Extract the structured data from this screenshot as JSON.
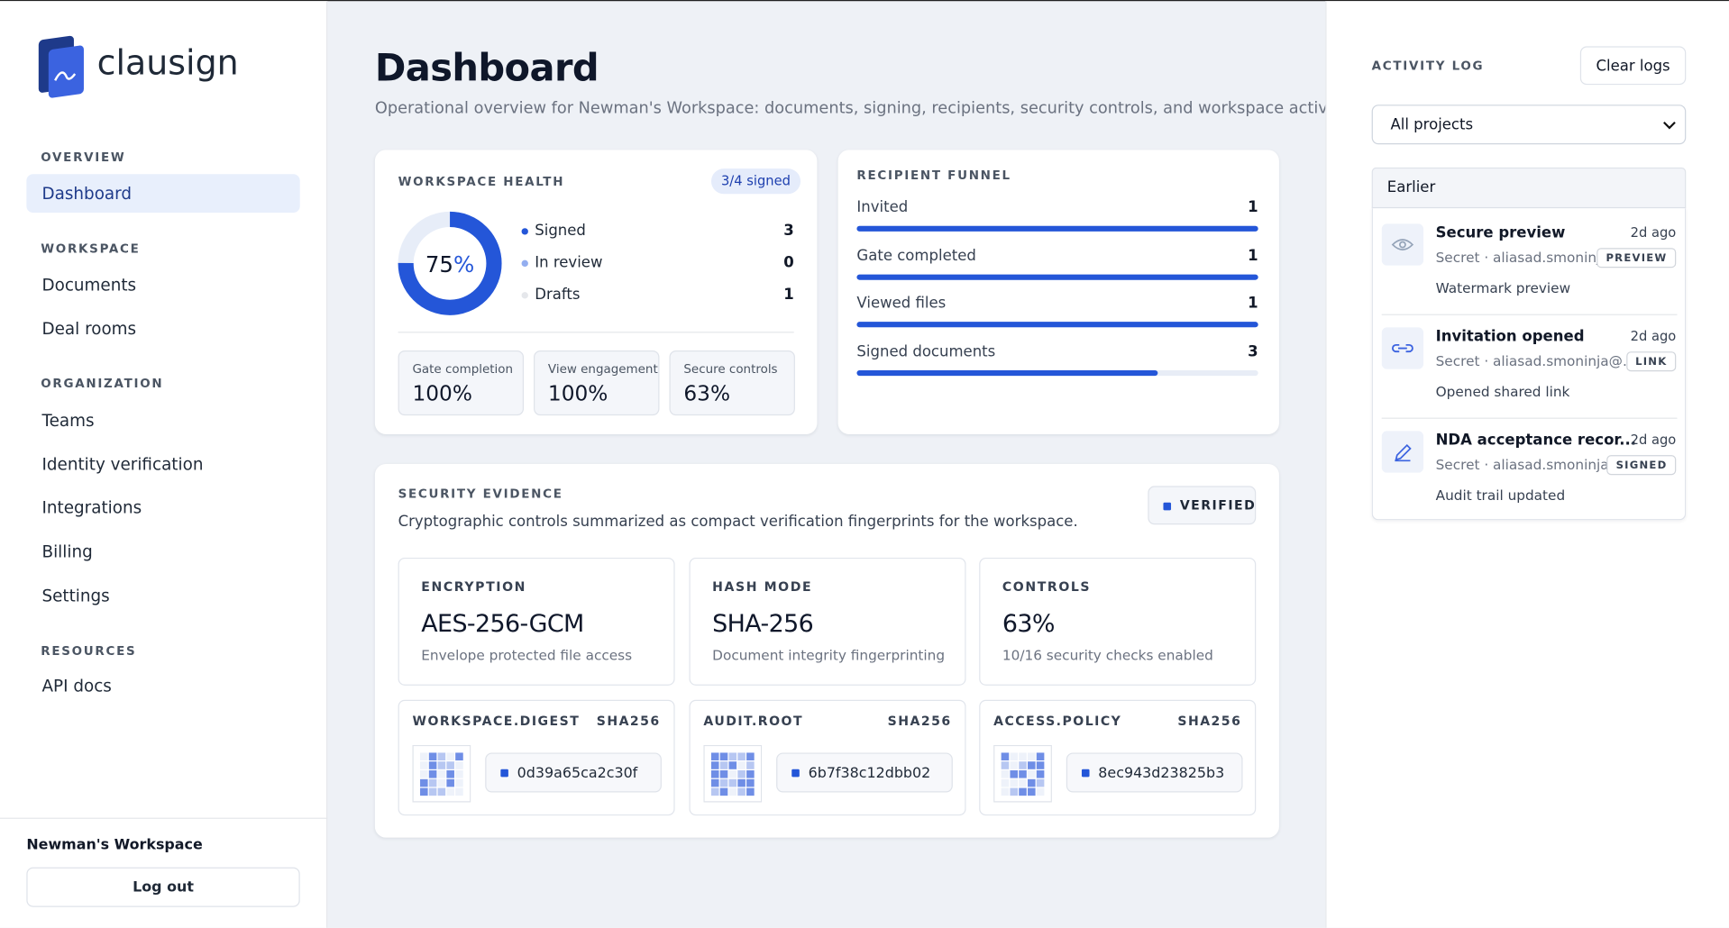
{
  "brand": "clausign",
  "nav": {
    "sections": [
      {
        "title": "OVERVIEW",
        "items": [
          "Dashboard"
        ]
      },
      {
        "title": "WORKSPACE",
        "items": [
          "Documents",
          "Deal rooms"
        ]
      },
      {
        "title": "ORGANIZATION",
        "items": [
          "Teams",
          "Identity verification",
          "Integrations",
          "Billing",
          "Settings"
        ]
      },
      {
        "title": "RESOURCES",
        "items": [
          "API docs"
        ]
      }
    ]
  },
  "footer": {
    "workspace": "Newman's Workspace",
    "logout": "Log out"
  },
  "header": {
    "title": "Dashboard",
    "subtitle": "Operational overview for Newman's Workspace: documents, signing, recipients, security controls, and workspace activity."
  },
  "health": {
    "title": "WORKSPACE HEALTH",
    "badge": "3/4 signed",
    "donut": {
      "value": 75,
      "unit": "%"
    },
    "legend": [
      {
        "label": "Signed",
        "value": 3
      },
      {
        "label": "In review",
        "value": 0
      },
      {
        "label": "Drafts",
        "value": 1
      }
    ],
    "stats": [
      {
        "label": "Gate completion",
        "value": "100%"
      },
      {
        "label": "View engagement",
        "value": "100%"
      },
      {
        "label": "Secure controls",
        "value": "63%"
      }
    ]
  },
  "funnel": {
    "title": "RECIPIENT FUNNEL",
    "rows": [
      {
        "label": "Invited",
        "value": 1
      },
      {
        "label": "Gate completed",
        "value": 1
      },
      {
        "label": "Viewed files",
        "value": 1
      },
      {
        "label": "Signed documents",
        "value": 3
      }
    ]
  },
  "security": {
    "title": "SECURITY EVIDENCE",
    "description": "Cryptographic controls summarized as compact verification fingerprints for the workspace.",
    "badge": "VERIFIED",
    "cards": [
      {
        "label": "ENCRYPTION",
        "value": "AES-256-GCM",
        "note": "Envelope protected file access"
      },
      {
        "label": "HASH MODE",
        "value": "SHA-256",
        "note": "Document integrity fingerprinting"
      },
      {
        "label": "CONTROLS",
        "value": "63%",
        "note": "10/16 security checks enabled"
      }
    ],
    "digests": [
      {
        "label": "WORKSPACE.DIGEST",
        "algo": "SHA256",
        "hash": "0d39a65ca2c30f"
      },
      {
        "label": "AUDIT.ROOT",
        "algo": "SHA256",
        "hash": "6b7f38c12dbb02"
      },
      {
        "label": "ACCESS.POLICY",
        "algo": "SHA256",
        "hash": "8ec943d23825b3"
      }
    ]
  },
  "activity": {
    "title": "ACTIVITY LOG",
    "clear": "Clear logs",
    "filter": "All projects",
    "group": "Earlier",
    "items": [
      {
        "title": "Secure preview",
        "time": "2d ago",
        "meta": "Secret · aliasad.smoninj...",
        "tag": "PREVIEW",
        "detail": "Watermark preview"
      },
      {
        "title": "Invitation opened",
        "time": "2d ago",
        "meta": "Secret · aliasad.smoninja@...",
        "tag": "LINK",
        "detail": "Opened shared link"
      },
      {
        "title": "NDA acceptance recor...",
        "time": "2d ago",
        "meta": "Secret · aliasad.smoninja...",
        "tag": "SIGNED",
        "detail": "Audit trail updated"
      }
    ]
  }
}
